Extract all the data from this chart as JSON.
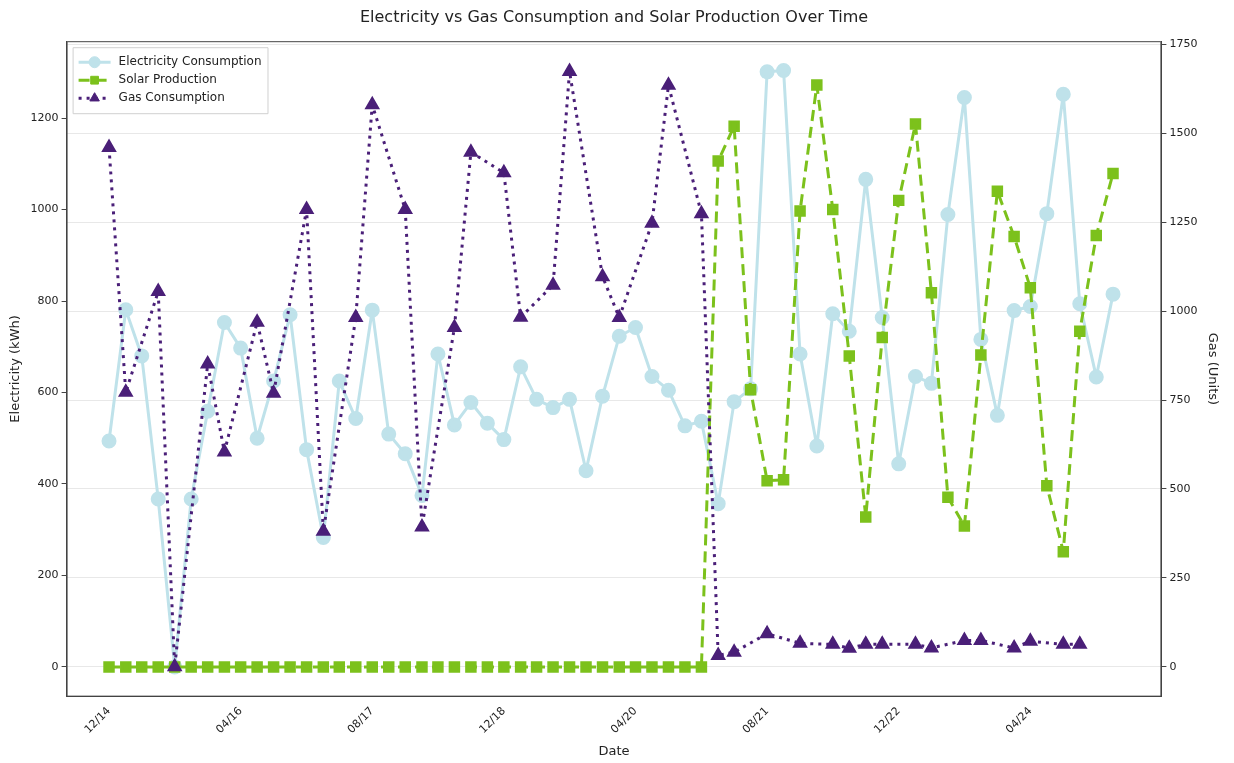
{
  "chart_data": {
    "type": "line",
    "title": "Electricity vs Gas Consumption and Solar Production Over Time",
    "xlabel": "Date",
    "ylabel": "Electricity (kWh)",
    "y2label": "Gas (Units)",
    "x": [
      "2014-12",
      "2015-02",
      "2015-04",
      "2015-06",
      "2015-08",
      "2015-10",
      "2015-12",
      "2016-02",
      "2016-04",
      "2016-06",
      "2016-08",
      "2016-10",
      "2016-12",
      "2017-02",
      "2017-04",
      "2017-06",
      "2017-08",
      "2017-10",
      "2017-12",
      "2018-02",
      "2018-04",
      "2018-06",
      "2018-08",
      "2018-10",
      "2018-12",
      "2019-02",
      "2019-04",
      "2019-06",
      "2019-08",
      "2019-10",
      "2019-12",
      "2020-02",
      "2020-04",
      "2020-06",
      "2020-08",
      "2020-10",
      "2020-12",
      "2021-02",
      "2021-04",
      "2021-06",
      "2021-08",
      "2021-10",
      "2021-12",
      "2022-02",
      "2022-04",
      "2022-06",
      "2022-08",
      "2022-10",
      "2022-12",
      "2023-02",
      "2023-04",
      "2023-06",
      "2023-08",
      "2023-10",
      "2023-12",
      "2024-02",
      "2024-04",
      "2024-06",
      "2024-08",
      "2024-10",
      "2024-12",
      "2025-02"
    ],
    "series": [
      {
        "name": "Electricity Consumption",
        "color": "#bfe2ea",
        "marker": "circle",
        "line_style": "solid",
        "values": [
          494,
          781,
          680,
          367,
          0,
          367,
          559,
          753,
          697,
          500,
          625,
          770,
          475,
          283,
          625,
          543,
          780,
          509,
          466,
          375,
          684,
          529,
          578,
          533,
          497,
          656,
          585,
          567,
          585,
          429,
          592,
          723,
          742,
          635,
          605,
          527,
          537,
          357,
          580,
          608,
          1301,
          1304,
          684,
          483,
          772,
          734,
          1066,
          764,
          444,
          635,
          620,
          989,
          1245,
          716,
          550,
          779,
          788,
          991,
          1252,
          794,
          634,
          815
        ]
      },
      {
        "name": "Solar Production",
        "color": "#7cc11c",
        "marker": "square",
        "line_style": "dashed",
        "values": [
          0,
          0,
          0,
          0,
          0,
          0,
          0,
          0,
          0,
          0,
          0,
          0,
          0,
          0,
          0,
          0,
          0,
          0,
          0,
          0,
          0,
          0,
          0,
          0,
          0,
          0,
          0,
          0,
          0,
          0,
          0,
          0,
          0,
          0,
          0,
          0,
          0,
          1106,
          1182,
          606,
          407,
          409,
          997,
          1272,
          1000,
          680,
          328,
          720,
          1020,
          1187,
          818,
          371,
          308,
          682,
          1040,
          941,
          829,
          396,
          252,
          734,
          943,
          1079
        ]
      },
      {
        "name": "Gas Consumption",
        "color": "#4a1f78",
        "marker": "triangle",
        "line_style": "dotted",
        "axis": "y2",
        "x": [
          "2014-12",
          "2015-02",
          "2015-06",
          "2015-08",
          "2015-12",
          "2016-02",
          "2016-06",
          "2016-08",
          "2016-12",
          "2017-02",
          "2017-06",
          "2017-08",
          "2017-12",
          "2018-02",
          "2018-06",
          "2018-08",
          "2018-12",
          "2019-02",
          "2019-06",
          "2019-08",
          "2019-12",
          "2020-02",
          "2020-06",
          "2020-08",
          "2020-12",
          "2021-02",
          "2021-04",
          "2021-08",
          "2021-12",
          "2022-04",
          "2022-06",
          "2022-08",
          "2022-10",
          "2023-02",
          "2023-04",
          "2023-08",
          "2023-10",
          "2024-02",
          "2024-04",
          "2024-08",
          "2024-10"
        ],
        "values": [
          1460,
          772,
          1055,
          0,
          851,
          604,
          969,
          769,
          1286,
          381,
          982,
          1580,
          1286,
          393,
          954,
          1447,
          1389,
          983,
          1073,
          1674,
          1097,
          982,
          1247,
          1635,
          1274,
          32,
          41,
          93,
          66,
          63,
          52,
          63,
          63,
          63,
          53,
          74,
          74,
          53,
          72,
          63,
          63
        ]
      }
    ],
    "xlim": [
      "2014-06-27",
      "2025-07-30"
    ],
    "xticks": [
      {
        "value": "2014-12",
        "label": "12/14"
      },
      {
        "value": "2016-04",
        "label": "04/16"
      },
      {
        "value": "2017-08",
        "label": "08/17"
      },
      {
        "value": "2018-12",
        "label": "12/18"
      },
      {
        "value": "2020-04",
        "label": "04/20"
      },
      {
        "value": "2021-08",
        "label": "08/21"
      },
      {
        "value": "2022-12",
        "label": "12/22"
      },
      {
        "value": "2024-04",
        "label": "04/24"
      }
    ],
    "ylim": [
      -65,
      1368
    ],
    "yticks": [
      0,
      200,
      400,
      600,
      800,
      1000,
      1200
    ],
    "y2lim": [
      -84,
      1759
    ],
    "y2ticks": [
      0,
      250,
      500,
      750,
      1000,
      1250,
      1500,
      1750
    ],
    "grid": "y2",
    "legend": "top left"
  }
}
